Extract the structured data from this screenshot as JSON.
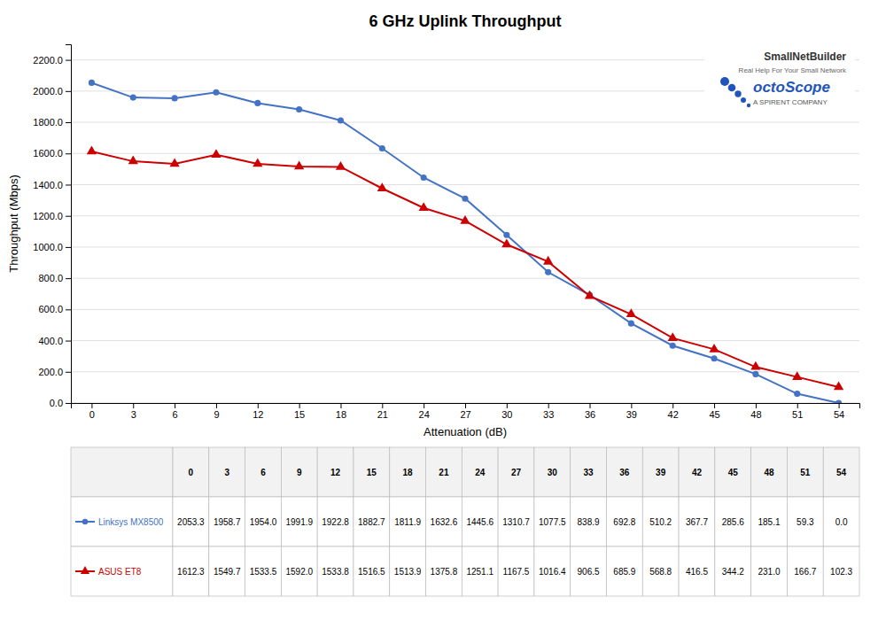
{
  "chart_data": {
    "type": "line",
    "title": "6 GHz Uplink Throughput",
    "xlabel": "Attenuation (dB)",
    "ylabel": "Throughput (Mbps)",
    "x": [
      0,
      3,
      6,
      9,
      12,
      15,
      18,
      21,
      24,
      27,
      30,
      33,
      36,
      39,
      42,
      45,
      48,
      51,
      54
    ],
    "xlim": [
      -1.5,
      55.5
    ],
    "xticks": [
      0,
      3,
      6,
      9,
      12,
      15,
      18,
      21,
      24,
      27,
      30,
      33,
      36,
      39,
      42,
      45,
      48,
      51,
      54
    ],
    "ylim": [
      0,
      2300
    ],
    "yticks": [
      {
        "value": 0,
        "label": "0.0"
      },
      {
        "value": 200,
        "label": "200.0"
      },
      {
        "value": 400,
        "label": "400.0"
      },
      {
        "value": 600,
        "label": "600.0"
      },
      {
        "value": 800,
        "label": "800.0"
      },
      {
        "value": 1000,
        "label": "1000.0"
      },
      {
        "value": 1200,
        "label": "1200.0"
      },
      {
        "value": 1400,
        "label": "1400.0"
      },
      {
        "value": 1600,
        "label": "1600.0"
      },
      {
        "value": 1800,
        "label": "1800.0"
      },
      {
        "value": 2000,
        "label": "2000.0"
      },
      {
        "value": 2200,
        "label": "2200.0"
      }
    ],
    "grid": true,
    "data_labels": true,
    "series": [
      {
        "name": "Linksys MX8500",
        "color": "#4472C4",
        "marker": "circle",
        "values": [
          2053.3,
          1958.7,
          1954.0,
          1991.9,
          1922.8,
          1882.7,
          1811.9,
          1632.6,
          1445.6,
          1310.7,
          1077.5,
          838.9,
          692.8,
          510.2,
          367.7,
          285.6,
          185.1,
          59.3,
          0.0
        ],
        "value_labels": [
          "2053.3",
          "1958.7",
          "1954.0",
          "1991.9",
          "1922.8",
          "1882.7",
          "1811.9",
          "1632.6",
          "1445.6",
          "1310.7",
          "1077.5",
          "838.9",
          "692.8",
          "510.2",
          "367.7",
          "285.6",
          "185.1",
          "59.3",
          "0.0"
        ]
      },
      {
        "name": "ASUS ET8",
        "color": "#CC0000",
        "marker": "triangle",
        "values": [
          1612.3,
          1549.7,
          1533.5,
          1592.0,
          1533.8,
          1516.5,
          1513.9,
          1375.8,
          1251.1,
          1167.5,
          1016.4,
          906.5,
          685.9,
          568.8,
          416.5,
          344.2,
          231.0,
          166.7,
          102.3
        ],
        "value_labels": [
          "1612.3",
          "1549.7",
          "1533.5",
          "1592.0",
          "1533.8",
          "1516.5",
          "1513.9",
          "1375.8",
          "1251.1",
          "1167.5",
          "1016.4",
          "906.5",
          "685.9",
          "568.8",
          "416.5",
          "344.2",
          "231.0",
          "166.7",
          "102.3"
        ]
      }
    ],
    "annotations": [
      "SmallNetBuilder",
      "Real Help For Your Small Network",
      "octoScope",
      "A SPIRENT COMPANY"
    ]
  }
}
